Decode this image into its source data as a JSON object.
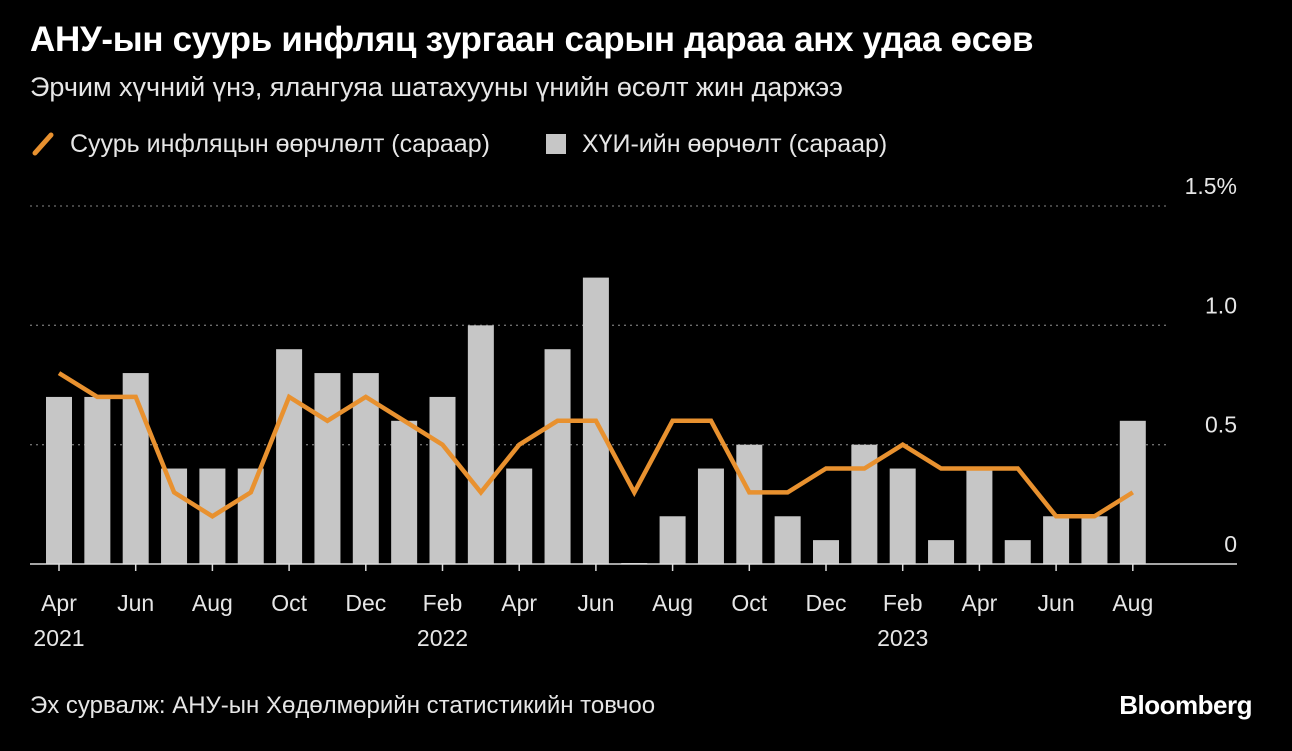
{
  "header": {
    "title": "АНУ-ын суурь инфляц зургаан сарын дараа анх удаа өсөв",
    "subtitle": "Эрчим хүчний үнэ, ялангуяа шатахууны үнийн өсөлт жин даржээ"
  },
  "legend": {
    "line_label": "Суурь инфляцын өөрчлөлт (сараар)",
    "bar_label": "ХҮИ-ийн өөрчөлт (сараар)"
  },
  "footer": {
    "source": "Эх сурвалж: АНУ-ын Хөдөлмөрийн статистикийн товчоо",
    "brand": "Bloomberg"
  },
  "colors": {
    "background": "#000000",
    "bar": "#c6c6c6",
    "line": "#e8912f",
    "grid": "#6e6e6e",
    "axis": "#dcdcdc",
    "text": "#e6e6e6"
  },
  "chart_data": {
    "type": "bar",
    "months": [
      "2021-04",
      "2021-05",
      "2021-06",
      "2021-07",
      "2021-08",
      "2021-09",
      "2021-10",
      "2021-11",
      "2021-12",
      "2022-01",
      "2022-02",
      "2022-03",
      "2022-04",
      "2022-05",
      "2022-06",
      "2022-07",
      "2022-08",
      "2022-09",
      "2022-10",
      "2022-11",
      "2022-12",
      "2023-01",
      "2023-02",
      "2023-03",
      "2023-04",
      "2023-05",
      "2023-06",
      "2023-07",
      "2023-08"
    ],
    "series": [
      {
        "name": "ХҮИ-ийн өөрчөлт (сараар)",
        "kind": "bar",
        "values": [
          0.7,
          0.7,
          0.8,
          0.4,
          0.4,
          0.4,
          0.9,
          0.8,
          0.8,
          0.6,
          0.7,
          1.0,
          0.4,
          0.9,
          1.2,
          0.0,
          0.2,
          0.4,
          0.5,
          0.2,
          0.1,
          0.5,
          0.4,
          0.1,
          0.4,
          0.1,
          0.2,
          0.2,
          0.6
        ]
      },
      {
        "name": "Суурь инфляцын өөрчлөлт (сараар)",
        "kind": "line",
        "values": [
          0.8,
          0.7,
          0.7,
          0.3,
          0.2,
          0.3,
          0.7,
          0.6,
          0.7,
          0.6,
          0.5,
          0.3,
          0.5,
          0.6,
          0.6,
          0.3,
          0.6,
          0.6,
          0.3,
          0.3,
          0.4,
          0.4,
          0.5,
          0.4,
          0.4,
          0.4,
          0.2,
          0.2,
          0.3
        ]
      }
    ],
    "y_ticks": [
      {
        "value": 0,
        "label": "0"
      },
      {
        "value": 0.5,
        "label": "0.5"
      },
      {
        "value": 1.0,
        "label": "1.0"
      },
      {
        "value": 1.5,
        "label": "1.5%"
      }
    ],
    "ylim": [
      0,
      1.5
    ],
    "x_ticks": [
      {
        "month": "2021-04",
        "label": "Apr",
        "year": "2021"
      },
      {
        "month": "2021-06",
        "label": "Jun"
      },
      {
        "month": "2021-08",
        "label": "Aug"
      },
      {
        "month": "2021-10",
        "label": "Oct"
      },
      {
        "month": "2021-12",
        "label": "Dec"
      },
      {
        "month": "2022-02",
        "label": "Feb",
        "year": "2022"
      },
      {
        "month": "2022-04",
        "label": "Apr"
      },
      {
        "month": "2022-06",
        "label": "Jun"
      },
      {
        "month": "2022-08",
        "label": "Aug"
      },
      {
        "month": "2022-10",
        "label": "Oct"
      },
      {
        "month": "2022-12",
        "label": "Dec"
      },
      {
        "month": "2023-02",
        "label": "Feb",
        "year": "2023"
      },
      {
        "month": "2023-04",
        "label": "Apr"
      },
      {
        "month": "2023-06",
        "label": "Jun"
      },
      {
        "month": "2023-08",
        "label": "Aug"
      }
    ],
    "grid": true,
    "y_axis_side": "right",
    "legend_position": "top-left"
  }
}
